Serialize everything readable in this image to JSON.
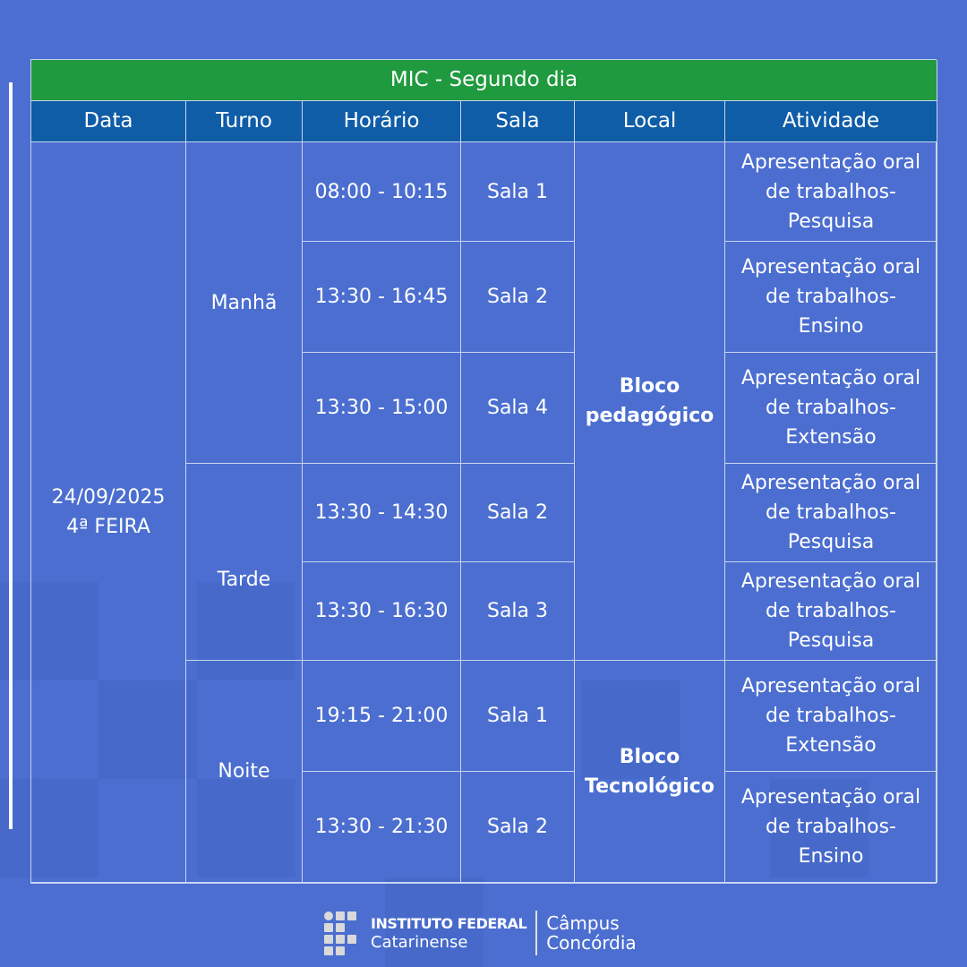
{
  "title": "MIC - Segundo dia",
  "headers": [
    "Data",
    "Turno",
    "Horário",
    "Sala",
    "Local",
    "Atividade"
  ],
  "date": {
    "line1": "24/09/2025",
    "line2": "4ª FEIRA"
  },
  "turnos": [
    "Manhã",
    "Tarde",
    "Noite"
  ],
  "locals": [
    {
      "line1": "Bloco",
      "line2": "pedagógico"
    },
    {
      "line1": "Bloco",
      "line2": "Tecnológico"
    }
  ],
  "rows": [
    {
      "horario": "08:00 - 10:15",
      "sala": "Sala 1",
      "atividade": [
        "Apresentação oral",
        "de trabalhos-",
        "Pesquisa"
      ]
    },
    {
      "horario": "13:30 - 16:45",
      "sala": "Sala 2",
      "atividade": [
        "Apresentação oral",
        "de trabalhos-",
        "Ensino"
      ]
    },
    {
      "horario": "13:30 - 15:00",
      "sala": "Sala 4",
      "atividade": [
        "Apresentação oral",
        "de trabalhos-",
        "Extensão"
      ]
    },
    {
      "horario": "13:30 - 14:30",
      "sala": "Sala 2",
      "atividade": [
        "Apresentação oral",
        "de trabalhos-",
        "Pesquisa"
      ]
    },
    {
      "horario": "13:30 - 16:30",
      "sala": "Sala 3",
      "atividade": [
        "Apresentação oral",
        "de trabalhos-",
        "Pesquisa"
      ]
    },
    {
      "horario": "19:15 - 21:00",
      "sala": "Sala 1",
      "atividade": [
        "Apresentação oral",
        "de trabalhos-",
        "Extensão"
      ]
    },
    {
      "horario": "13:30 - 21:30",
      "sala": "Sala 2",
      "atividade": [
        "Apresentação oral",
        "de trabalhos-",
        "Ensino"
      ]
    }
  ],
  "footer": {
    "org1": "INSTITUTO FEDERAL",
    "org2": "Catarinense",
    "campus1": "Câmpus",
    "campus2": "Concórdia"
  },
  "colors": {
    "background": "#4b6ed0",
    "title_bar": "#1f9a3e",
    "header_bar": "#0f5ca7"
  }
}
